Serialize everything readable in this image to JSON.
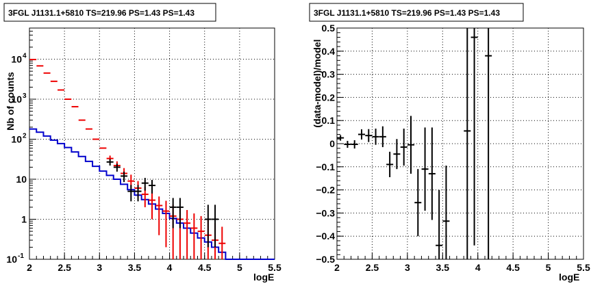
{
  "chart_data": [
    {
      "type": "histogram",
      "title": "3FGL J1131.1+5810 TS=219.96 PS=1.43 PS=1.43",
      "xlabel": "logE",
      "ylabel": "Nb of counts",
      "xlim": [
        2,
        5.5
      ],
      "ylim": [
        0.1,
        60000
      ],
      "ylog": true,
      "grid": true,
      "xticks": [
        "2",
        "2.5",
        "3",
        "3.5",
        "4",
        "4.5",
        "5",
        "5.5"
      ],
      "yticks": [
        {
          "v": 0.1,
          "label": "10",
          "exp": "-1"
        },
        {
          "v": 1,
          "label": "1",
          "exp": ""
        },
        {
          "v": 10,
          "label": "10",
          "exp": ""
        },
        {
          "v": 100,
          "label": "10",
          "exp": "2"
        },
        {
          "v": 1000,
          "label": "10",
          "exp": "3"
        },
        {
          "v": 10000,
          "label": "10",
          "exp": "4"
        }
      ],
      "series": [
        {
          "color": "#0000cc",
          "style": "step",
          "bin_edges": [
            2.0,
            2.1,
            2.2,
            2.3,
            2.4,
            2.5,
            2.6,
            2.7,
            2.8,
            2.9,
            3.0,
            3.1,
            3.2,
            3.3,
            3.4,
            3.5,
            3.6,
            3.7,
            3.8,
            3.9,
            4.0,
            4.1,
            4.2,
            4.3,
            4.4,
            4.5,
            4.6,
            4.7,
            4.8,
            4.9,
            5.0,
            5.1,
            5.2,
            5.3,
            5.4,
            5.5
          ],
          "values": [
            180,
            150,
            120,
            95,
            78,
            62,
            48,
            37,
            28,
            21,
            16,
            12.5,
            10,
            7.5,
            5.5,
            4,
            3.1,
            2.4,
            1.8,
            1.4,
            1.05,
            0.8,
            0.6,
            0.45,
            0.34,
            0.27,
            0.2,
            0.15,
            0.1,
            0.1,
            0.1,
            0.1,
            0.1,
            0.1,
            0.1
          ]
        },
        {
          "color": "#ee0000",
          "style": "points",
          "x": [
            2.05,
            2.15,
            2.25,
            2.35,
            2.45,
            2.55,
            2.65,
            2.75,
            2.85,
            2.95,
            3.05,
            3.15,
            3.25,
            3.35,
            3.45,
            3.55,
            3.65,
            3.75,
            3.85,
            3.95,
            4.05,
            4.15,
            4.25,
            4.35,
            4.45,
            4.55,
            4.65,
            4.75
          ],
          "y": [
            9800,
            6800,
            4500,
            2800,
            1700,
            1000,
            650,
            300,
            180,
            100,
            60,
            33,
            22,
            14,
            9,
            6,
            4.2,
            3,
            2.2,
            1.6,
            1.2,
            1,
            0.8,
            0.6,
            0.5,
            0.4,
            0.3,
            0.25
          ],
          "err_lo": [
            0,
            0,
            0,
            0,
            0,
            0,
            0,
            0,
            0,
            0,
            0,
            3,
            3,
            3,
            3,
            2.5,
            2.2,
            2,
            1.8,
            1.4,
            1.1,
            0.95,
            0.78,
            0.59,
            0.49,
            0.39,
            0.29,
            0.24
          ],
          "err_hi": [
            0,
            0,
            0,
            0,
            0,
            0,
            0,
            0,
            0,
            0,
            0,
            6,
            6,
            5,
            4,
            3,
            2.2,
            2,
            1.5,
            1.3,
            1.1,
            1,
            0.9,
            0.8,
            0.7,
            0.6,
            0.5,
            0.4
          ]
        },
        {
          "color": "#000000",
          "style": "points",
          "x": [
            3.15,
            3.25,
            3.35,
            3.45,
            3.55,
            3.65,
            3.75,
            4.05,
            4.15,
            4.55,
            4.65
          ],
          "y": [
            27,
            20,
            12,
            5,
            5,
            8,
            7,
            2,
            2,
            1,
            1
          ],
          "err_lo": [
            5,
            4.5,
            3.5,
            2.2,
            2.2,
            2.8,
            2.6,
            1.4,
            1.4,
            0.8,
            0.8
          ],
          "err_hi": [
            5,
            4.5,
            3.5,
            2.2,
            2.2,
            2.8,
            2.6,
            1.4,
            1.4,
            1.3,
            1.3
          ]
        }
      ]
    },
    {
      "type": "scatter",
      "title": "3FGL J1131.1+5810 TS=219.96 PS=1.43 PS=1.43",
      "xlabel": "logE",
      "ylabel": "(data-model)/model",
      "xlim": [
        2,
        5.5
      ],
      "ylim": [
        -0.5,
        0.5
      ],
      "grid": true,
      "xticks": [
        "2",
        "2.5",
        "3",
        "3.5",
        "4",
        "4.5",
        "5",
        "5.5"
      ],
      "yticks": [
        "-0.5",
        "-0.4",
        "-0.3",
        "-0.2",
        "-0.1",
        "0",
        "0.1",
        "0.2",
        "0.3",
        "0.4",
        "0.5"
      ],
      "series": [
        {
          "color": "#000000",
          "x": [
            2.05,
            2.15,
            2.25,
            2.35,
            2.45,
            2.55,
            2.65,
            2.75,
            2.85,
            2.95,
            3.05,
            3.15,
            3.25,
            3.35,
            3.45,
            3.55,
            3.85,
            3.95,
            4.15
          ],
          "y": [
            0.025,
            -0.003,
            -0.003,
            0.04,
            0.035,
            0.03,
            0.03,
            -0.09,
            -0.045,
            -0.015,
            -0.005,
            -0.255,
            -0.11,
            -0.13,
            -0.44,
            -0.335,
            0.055,
            0.46,
            0.38
          ],
          "err": [
            0.012,
            0.015,
            0.018,
            0.022,
            0.028,
            0.035,
            0.045,
            0.055,
            0.065,
            0.08,
            0.125,
            0.145,
            0.18,
            0.2,
            0.24,
            0.24,
            0.9,
            0.9,
            0.9
          ]
        }
      ]
    }
  ]
}
